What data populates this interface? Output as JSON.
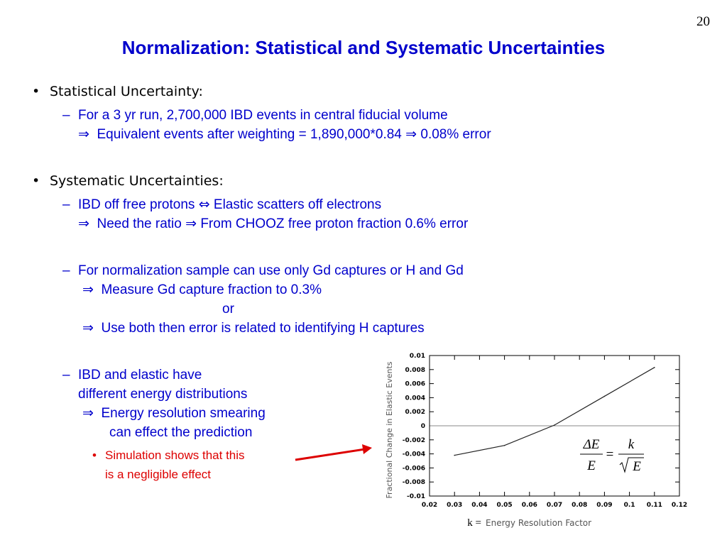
{
  "slide_number": "20",
  "title": "Normalization: Statistical and Systematic Uncertainties",
  "sections": {
    "statistical": {
      "heading": "Statistical Uncertainty:",
      "item1": {
        "line1": "For a 3 yr run, 2,700,000 IBD events in central fiducial volume",
        "line2": "Equivalent events after weighting = 1,890,000*0.84",
        "line2_tail": "0.08% error"
      }
    },
    "systematic": {
      "heading": "Systematic Uncertainties:",
      "item1": {
        "line1_a": "IBD off free protons",
        "line1_b": "Elastic scatters off electrons",
        "line2_a": "Need the ratio",
        "line2_b": "From CHOOZ free proton fraction 0.6% error"
      },
      "item2": {
        "line1": "For normalization sample can use only Gd captures or H and Gd",
        "line2": "Measure Gd capture fraction to 0.3%",
        "line3": "or",
        "line4": "Use both then error is related to identifying H captures"
      },
      "item3": {
        "line1": "IBD and elastic have",
        "line2": "different energy distributions",
        "line3": "Energy resolution smearing",
        "line4": "can effect the prediction",
        "sub1": {
          "line1": "Simulation shows that this",
          "line2": "is a negligible effect"
        }
      }
    }
  },
  "formula": {
    "lhs_num": "ΔE",
    "lhs_den": "E",
    "equals": "=",
    "rhs_num": "k",
    "rhs_den": "E"
  },
  "colors": {
    "title": "#0000cc",
    "body": "#0000cc",
    "note": "#dd0000",
    "arrow": "#dd0000"
  },
  "chart_data": {
    "type": "line",
    "ylabel": "Fractional Change in Elastic Events",
    "xlabel_prefix": "k =",
    "xlabel": "Energy Resolution Factor",
    "xlim": [
      0.02,
      0.12
    ],
    "ylim": [
      -0.01,
      0.01
    ],
    "x_ticks": [
      "0.02",
      "0.03",
      "0.04",
      "0.05",
      "0.06",
      "0.07",
      "0.08",
      "0.09",
      "0.1",
      "0.11",
      "0.12"
    ],
    "y_ticks": [
      "0.01",
      "0.008",
      "0.006",
      "0.004",
      "0.002",
      "0",
      "-0.002",
      "-0.004",
      "-0.006",
      "-0.008",
      "-0.01"
    ],
    "x_tick_values": [
      0.02,
      0.03,
      0.04,
      0.05,
      0.06,
      0.07,
      0.08,
      0.09,
      0.1,
      0.11,
      0.12
    ],
    "y_tick_values": [
      0.01,
      0.008,
      0.006,
      0.004,
      0.002,
      0,
      -0.002,
      -0.004,
      -0.006,
      -0.008,
      -0.01
    ],
    "reference_line_y": 0,
    "series": [
      {
        "x": [
          0.03,
          0.05,
          0.07,
          0.09,
          0.11
        ],
        "y": [
          -0.0042,
          -0.0028,
          0.0001,
          0.0042,
          0.0083
        ]
      }
    ],
    "grid": false
  }
}
